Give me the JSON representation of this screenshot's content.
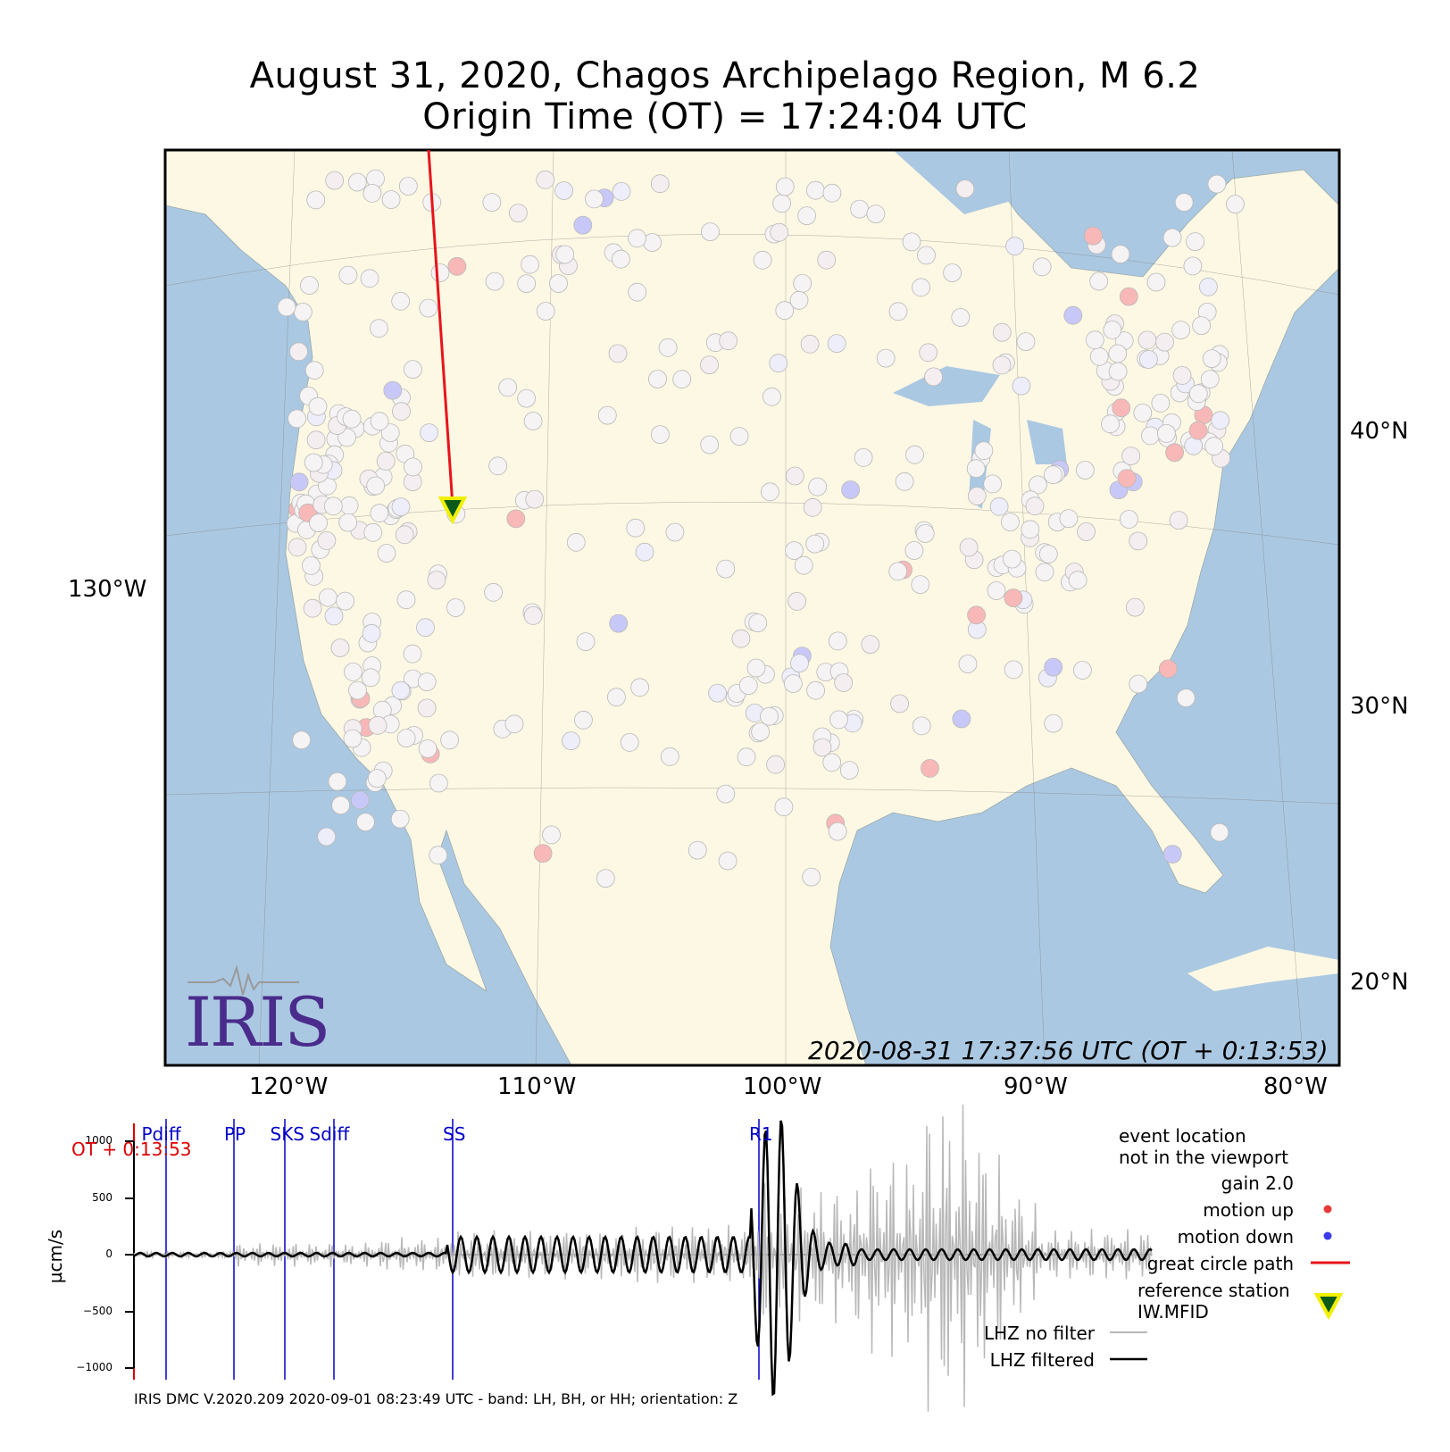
{
  "title": {
    "line1": "August 31, 2020, Chagos Archipelago Region, M 6.2",
    "line2": "Origin Time (OT) = 17:24:04 UTC"
  },
  "map": {
    "timestamp": "2020-08-31 17:37:56 UTC (OT + 0:13:53)",
    "logo_text": "IRIS",
    "lon_labels": [
      "120°W",
      "110°W",
      "100°W",
      "90°W",
      "80°W"
    ],
    "lat_labels": [
      "40°N",
      "30°N",
      "20°N"
    ],
    "left_lon_label": "130°W",
    "colors": {
      "ocean": "#abc8e2",
      "land": "#fdf8e4",
      "great_circle": "#e8141a",
      "station_marker_fill": "#0b5b18",
      "station_marker_edge": "#f0f000"
    },
    "reference_station": "IW.MFID"
  },
  "seismogram": {
    "ylabel": "µcm/s",
    "yticks": [
      "1000",
      "500",
      "0",
      "−500",
      "−1000"
    ],
    "ot_label": "OT + 0:13:53",
    "phases": [
      "Pdiff",
      "PP",
      "SKS",
      "Sdiff",
      "SS",
      "R1"
    ]
  },
  "legend": {
    "event_line1": "event location",
    "event_line2": "not in the viewport",
    "gain": "gain  2.0",
    "motion_up": "motion up",
    "motion_down": "motion down",
    "great_circle": "great circle path",
    "reference_line1": "reference station",
    "reference_line2": "IW.MFID",
    "no_filter": "LHZ no filter",
    "filtered": "LHZ filtered",
    "colors": {
      "up": "#e83a3a",
      "down": "#3a3ae8",
      "raw": "#b8b8b8",
      "filtered": "#000000"
    }
  },
  "footer": "IRIS DMC V.2020.209 2020-09-01 08:23:49 UTC - band: LH, BH, or HH; orientation: Z"
}
